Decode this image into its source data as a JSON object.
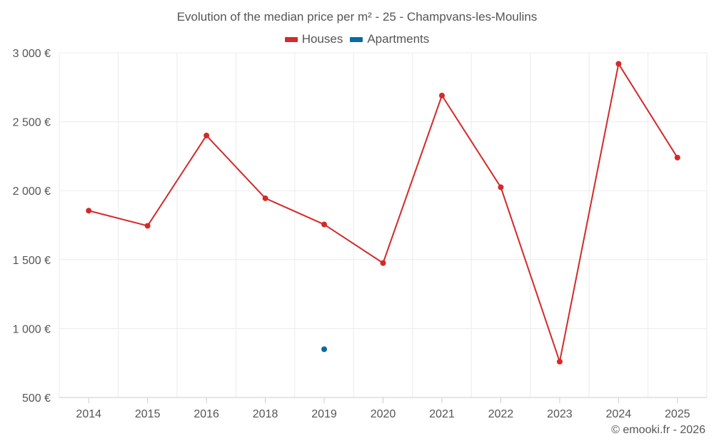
{
  "chart_data": {
    "type": "line",
    "title": "Evolution of the median price per m² - 25 - Champvans-les-Moulins",
    "categories": [
      "2014",
      "2015",
      "2016",
      "2018",
      "2019",
      "2020",
      "2021",
      "2022",
      "2023",
      "2024",
      "2025"
    ],
    "series": [
      {
        "name": "Houses",
        "color": "#d32a2a",
        "values": [
          1855,
          1745,
          2400,
          1945,
          1755,
          1475,
          2690,
          2025,
          760,
          2920,
          2240
        ]
      },
      {
        "name": "Apartments",
        "color": "#0b6aa2",
        "values": [
          null,
          null,
          null,
          null,
          850,
          null,
          null,
          null,
          null,
          null,
          null
        ]
      }
    ],
    "ylim": [
      500,
      3000
    ],
    "yticks": [
      500,
      1000,
      1500,
      2000,
      2500,
      3000
    ],
    "ytick_labels": [
      "500 €",
      "1 000 €",
      "1 500 €",
      "2 000 €",
      "2 500 €",
      "3 000 €"
    ],
    "xlabel": "",
    "ylabel": "",
    "grid": true,
    "legend_position": "top-center"
  },
  "credit": "© emooki.fr - 2026"
}
